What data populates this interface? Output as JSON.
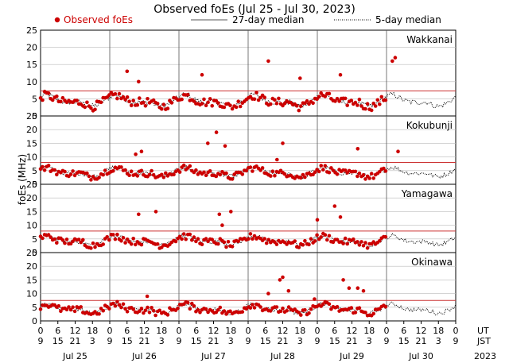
{
  "chart_data": {
    "type": "scatter",
    "title": "Observed foEs (Jul 25 - Jul 30, 2023)",
    "ylabel": "foEs (MHz)",
    "legend": {
      "placement": "top",
      "observed_label": "Observed foEs",
      "median27_label": "27-day median",
      "median5_label": "5-day median"
    },
    "colors": {
      "observed": "#cc0000",
      "median27": "#cc3333",
      "median5": "#000000",
      "grid": "#bbbbbb",
      "axis": "#000000",
      "day_divider": "#555555"
    },
    "ylim": [
      0,
      25
    ],
    "yticks": [
      0,
      5,
      10,
      15,
      20,
      25
    ],
    "hour_ticks": [
      "9",
      "6",
      "15",
      "12",
      "21",
      "18",
      "3",
      "0",
      "9",
      "6",
      "15",
      "12",
      "21",
      "18",
      "3",
      "0",
      "9",
      "6",
      "15",
      "12",
      "21",
      "18",
      "3",
      "0",
      "9",
      "6",
      "15",
      "12",
      "21",
      "18",
      "3",
      "0",
      "9",
      "6",
      "15",
      "12",
      "21",
      "18",
      "3",
      "0",
      "9",
      "6",
      "15",
      "12",
      "21",
      "18",
      "3",
      "0",
      "9"
    ],
    "ut_label": "UT",
    "jst_label": "JST",
    "days": [
      "Jul 25",
      "Jul 26",
      "Jul 27",
      "Jul 28",
      "Jul 29",
      "Jul 30"
    ],
    "year_label": "2023",
    "panels": [
      {
        "station": "Wakkanai",
        "median27": 7.3,
        "obs_end_hour": 120,
        "peaks": [
          [
            30,
            13
          ],
          [
            34,
            10
          ],
          [
            56,
            12
          ],
          [
            79,
            16
          ],
          [
            90,
            11
          ],
          [
            104,
            12
          ],
          [
            122,
            16
          ],
          [
            123,
            17
          ]
        ]
      },
      {
        "station": "Kokubunji",
        "median27": 8.0,
        "obs_end_hour": 120,
        "peaks": [
          [
            33,
            11
          ],
          [
            35,
            12
          ],
          [
            58,
            15
          ],
          [
            61,
            19
          ],
          [
            64,
            14
          ],
          [
            82,
            9
          ],
          [
            84,
            15
          ],
          [
            110,
            13
          ],
          [
            124,
            12
          ]
        ]
      },
      {
        "station": "Yamagawa",
        "median27": 7.9,
        "obs_end_hour": 120,
        "peaks": [
          [
            34,
            14
          ],
          [
            40,
            15
          ],
          [
            62,
            14
          ],
          [
            63,
            10
          ],
          [
            66,
            15
          ],
          [
            96,
            12
          ],
          [
            102,
            17
          ],
          [
            104,
            13
          ]
        ]
      },
      {
        "station": "Okinawa",
        "median27": 7.5,
        "obs_end_hour": 120,
        "peaks": [
          [
            37,
            9
          ],
          [
            79,
            10
          ],
          [
            83,
            15
          ],
          [
            84,
            16
          ],
          [
            86,
            11
          ],
          [
            95,
            8
          ],
          [
            105,
            15
          ],
          [
            107,
            12
          ],
          [
            110,
            12
          ],
          [
            112,
            11
          ]
        ]
      }
    ]
  }
}
